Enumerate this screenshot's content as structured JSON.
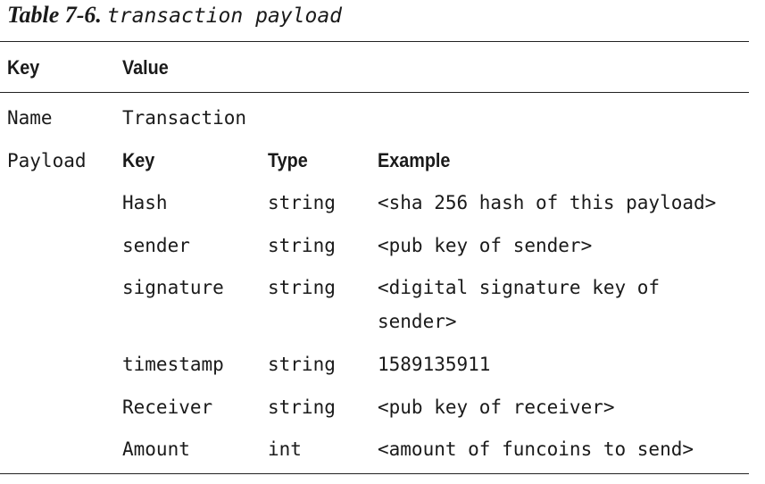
{
  "caption": {
    "number": "Table 7-6.",
    "title": "transaction payload"
  },
  "header": {
    "key": "Key",
    "value": "Value"
  },
  "name_row": {
    "key": "Name",
    "value": "Transaction"
  },
  "payload_row": {
    "key": "Payload",
    "columns": {
      "key": "Key",
      "type": "Type",
      "example": "Example"
    },
    "fields": [
      {
        "key": "Hash",
        "type": "string",
        "example": "<sha 256 hash of this payload>"
      },
      {
        "key": "sender",
        "type": "string",
        "example": "<pub key of sender>"
      },
      {
        "key": "signature",
        "type": "string",
        "example": "<digital signature key of",
        "example_cont": "sender>"
      },
      {
        "key": "timestamp",
        "type": "string",
        "example": "1589135911"
      },
      {
        "key": "Receiver",
        "type": "string",
        "example": "<pub key of receiver>"
      },
      {
        "key": "Amount",
        "type": "int",
        "example": "<amount of funcoins to send>"
      }
    ]
  }
}
